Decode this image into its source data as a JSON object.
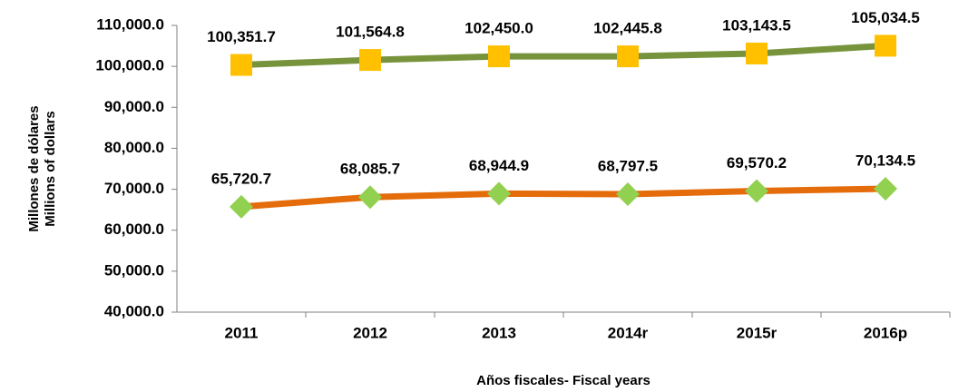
{
  "chart_data": {
    "type": "line",
    "categories": [
      "2011",
      "2012",
      "2013",
      "2014r",
      "2015r",
      "2016p"
    ],
    "series": [
      {
        "color": "#77933c",
        "marker": "square",
        "marker_color": "#ffc000",
        "values": [
          100351.7,
          101564.8,
          102450.0,
          102445.8,
          103143.5,
          105034.5
        ],
        "value_labels": [
          "100,351.7",
          "101,564.8",
          "102,450.0",
          "102,445.8",
          "103,143.5",
          "105,034.5"
        ]
      },
      {
        "color": "#e46c0a",
        "marker": "diamond",
        "marker_color": "#92d050",
        "values": [
          65720.7,
          68085.7,
          68944.9,
          68797.5,
          69570.2,
          70134.5
        ],
        "value_labels": [
          "65,720.7",
          "68,085.7",
          "68,944.9",
          "68,797.5",
          "69,570.2",
          "70,134.5"
        ]
      }
    ],
    "ylim": [
      40000,
      110000
    ],
    "yticks": [
      {
        "value": 40000,
        "label": "40,000.0"
      },
      {
        "value": 50000,
        "label": "50,000.0"
      },
      {
        "value": 60000,
        "label": "60,000.0"
      },
      {
        "value": 70000,
        "label": "70,000.0"
      },
      {
        "value": 80000,
        "label": "80,000.0"
      },
      {
        "value": 90000,
        "label": "90,000.0"
      },
      {
        "value": 100000,
        "label": "100,000.0"
      },
      {
        "value": 110000,
        "label": "110,000.0"
      }
    ],
    "xlabel": "Años fiscales- Fiscal years",
    "ylabel": [
      "Millones de dólares",
      "Millions of dollars"
    ],
    "grid": false
  }
}
